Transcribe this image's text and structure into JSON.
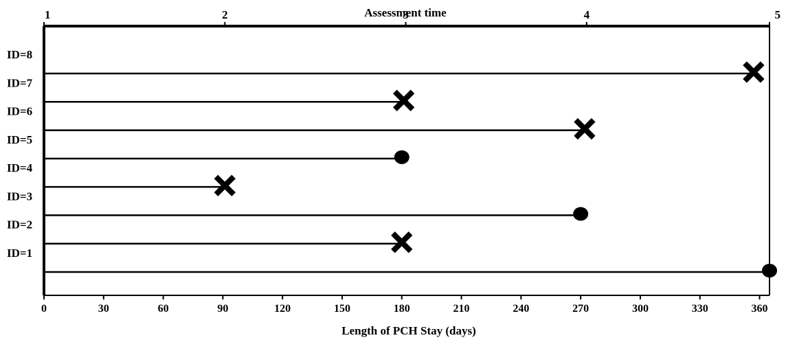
{
  "chart_data": {
    "type": "timeline",
    "top_axis": {
      "title": "Assessment time",
      "ticks": [
        {
          "label": "1",
          "day": 0
        },
        {
          "label": "2",
          "day": 91
        },
        {
          "label": "3",
          "day": 182
        },
        {
          "label": "4",
          "day": 273
        },
        {
          "label": "5",
          "day": 365
        }
      ]
    },
    "bottom_axis": {
      "title": "Length of PCH Stay (days)",
      "ticks": [
        0,
        30,
        60,
        90,
        120,
        150,
        180,
        210,
        240,
        270,
        300,
        330,
        360
      ],
      "range": [
        0,
        365
      ]
    },
    "subjects": [
      {
        "label": "ID=8",
        "length_days": 357,
        "end_marker": "cross"
      },
      {
        "label": "ID=7",
        "length_days": 181,
        "end_marker": "cross"
      },
      {
        "label": "ID=6",
        "length_days": 272,
        "end_marker": "cross"
      },
      {
        "label": "ID=5",
        "length_days": 180,
        "end_marker": "circle"
      },
      {
        "label": "ID=4",
        "length_days": 91,
        "end_marker": "cross"
      },
      {
        "label": "ID=3",
        "length_days": 270,
        "end_marker": "circle"
      },
      {
        "label": "ID=2",
        "length_days": 180,
        "end_marker": "cross"
      },
      {
        "label": "ID=1",
        "length_days": 365,
        "end_marker": "circle"
      }
    ]
  }
}
